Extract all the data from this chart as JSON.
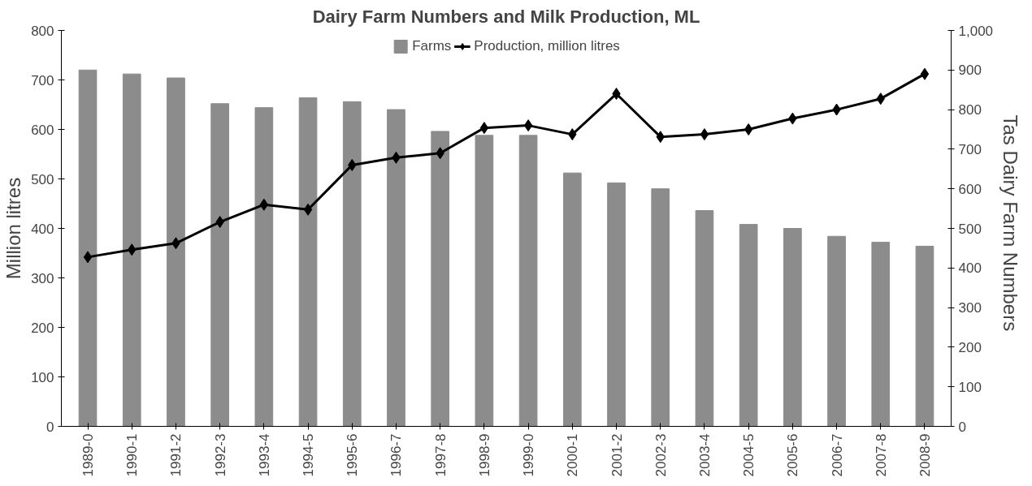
{
  "chart_data": {
    "type": "bar",
    "title": "Dairy Farm Numbers and Milk Production, ML",
    "ylabel": "Million litres",
    "y2label": "Tas  Dairy Farm  Numbers",
    "categories": [
      "1989-0",
      "1990-1",
      "1991-2",
      "1992-3",
      "1993-4",
      "1994-5",
      "1995-6",
      "1996-7",
      "1997-8",
      "1998-9",
      "1999-0",
      "2000-1",
      "2001-2",
      "2002-3",
      "2003-4",
      "2004-5",
      "2005-6",
      "2006-7",
      "2007-8",
      "2008-9"
    ],
    "series": [
      {
        "name": "Farms",
        "axis": "y2",
        "color": "#8c8c8c",
        "values": [
          900,
          890,
          880,
          815,
          805,
          830,
          820,
          800,
          745,
          735,
          735,
          640,
          615,
          600,
          545,
          510,
          500,
          480,
          465,
          455
        ]
      },
      {
        "name": "Production, million litres",
        "type": "line",
        "axis": "y",
        "color": "#000000",
        "marker": "diamond",
        "values": [
          342,
          357,
          370,
          413,
          448,
          438,
          528,
          543,
          552,
          603,
          608,
          590,
          672,
          585,
          590,
          600,
          622,
          640,
          662,
          712
        ]
      }
    ],
    "ylim": [
      0,
      800
    ],
    "yticks": [
      0,
      100,
      200,
      300,
      400,
      500,
      600,
      700,
      800
    ],
    "y2lim": [
      0,
      1000
    ],
    "y2ticks": [
      0,
      100,
      200,
      300,
      400,
      500,
      600,
      700,
      800,
      900,
      {
        "value": 1000,
        "label": "1,000"
      }
    ],
    "grid": false,
    "legend": "top"
  }
}
